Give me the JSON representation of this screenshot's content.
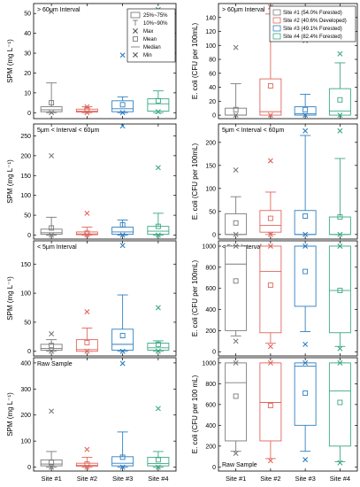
{
  "chart_data": {
    "type": "box",
    "categories": [
      "Site #1",
      "Site #2",
      "Site #3",
      "Site #4"
    ],
    "series_colors": [
      "#7a7a7a",
      "#e0665c",
      "#2f7fc1",
      "#3aa882"
    ],
    "legend_series": [
      {
        "label": "Site #1 (54.0% Forested)",
        "color": "#7a7a7a"
      },
      {
        "label": "Site #2 (40.6% Developed)",
        "color": "#e0665c"
      },
      {
        "label": "Site #3 (49.1% Forested)",
        "color": "#2f7fc1"
      },
      {
        "label": "Site #4 (82.4% Forested)",
        "color": "#3aa882"
      }
    ],
    "legend_stats": {
      "box": "25%~75%",
      "whisker": "10%~90%",
      "max": "Max",
      "mean": "Mean",
      "median": "Median",
      "min": "Min"
    },
    "panels": [
      {
        "col": 0,
        "row": 0,
        "ylabel": "SPM (mg L⁻¹)",
        "interval": "> 60μm Interval",
        "ylim": [
          -3,
          55
        ],
        "yticks": [
          0,
          10,
          20,
          30,
          40,
          50
        ],
        "show_stats_legend": true,
        "boxes": [
          {
            "q1": 0.5,
            "q3": 3,
            "median": 1.5,
            "mean": 5,
            "whislo": 0,
            "whishi": 15,
            "min": 0,
            "max": 51
          },
          {
            "q1": 0.3,
            "q3": 1.8,
            "median": 0.8,
            "mean": 1.5,
            "whislo": 0,
            "whishi": 3,
            "min": 0,
            "max": 3
          },
          {
            "q1": 0.5,
            "q3": 6,
            "median": 2,
            "mean": 4,
            "whislo": 0,
            "whishi": 8,
            "min": 0,
            "max": 29
          },
          {
            "q1": 0.8,
            "q3": 7,
            "median": 4.5,
            "mean": 6,
            "whislo": 0,
            "whishi": 11,
            "min": 0.5,
            "max": 52
          }
        ]
      },
      {
        "col": 1,
        "row": 0,
        "ylabel": "E. coli (CFU per 100mL)",
        "interval": "> 60μm Interval",
        "ylim": [
          -5,
          160
        ],
        "yticks": [
          0,
          20,
          40,
          60,
          80,
          100,
          120,
          140
        ],
        "show_series_legend": true,
        "boxes": [
          {
            "q1": 0,
            "q3": 10,
            "median": 0,
            "mean": 8,
            "whislo": 0,
            "whishi": 45,
            "min": 0,
            "max": 97
          },
          {
            "q1": 0,
            "q3": 52,
            "median": 5,
            "mean": 42,
            "whislo": 0,
            "whishi": 145,
            "min": 0,
            "max": 155
          },
          {
            "q1": 0,
            "q3": 12,
            "median": 2,
            "mean": 8,
            "whislo": 0,
            "whishi": 30,
            "min": 0,
            "max": 107
          },
          {
            "q1": 0,
            "q3": 38,
            "median": 6,
            "mean": 22,
            "whislo": 0,
            "whishi": 75,
            "min": 0,
            "max": 88
          }
        ]
      },
      {
        "col": 0,
        "row": 1,
        "ylabel": "SPM (mg L⁻¹)",
        "interval": "5μm < Interval < 60μm",
        "ylim": [
          -10,
          280
        ],
        "yticks": [
          0,
          50,
          100,
          150,
          200,
          250
        ],
        "boxes": [
          {
            "q1": 2,
            "q3": 15,
            "median": 6,
            "mean": 18,
            "whislo": 0,
            "whishi": 45,
            "min": 0,
            "max": 200
          },
          {
            "q1": 1,
            "q3": 8,
            "median": 3,
            "mean": 5,
            "whislo": 0,
            "whishi": 20,
            "min": 0,
            "max": 55
          },
          {
            "q1": 2,
            "q3": 20,
            "median": 8,
            "mean": 26,
            "whislo": 0,
            "whishi": 38,
            "min": 0,
            "max": 275
          },
          {
            "q1": 2,
            "q3": 22,
            "median": 10,
            "mean": 22,
            "whislo": 0,
            "whishi": 55,
            "min": 0,
            "max": 170
          }
        ]
      },
      {
        "col": 1,
        "row": 1,
        "ylabel": "E. coli (CFU per 100mL)",
        "interval": "5μm < Interval < 60μm",
        "ylim": [
          -10,
          240
        ],
        "yticks": [
          0,
          50,
          100,
          150,
          200
        ],
        "boxes": [
          {
            "q1": 0,
            "q3": 45,
            "median": 0,
            "mean": 25,
            "whislo": 0,
            "whishi": 82,
            "min": 0,
            "max": 140
          },
          {
            "q1": 5,
            "q3": 52,
            "median": 20,
            "mean": 35,
            "whislo": 0,
            "whishi": 92,
            "min": 0,
            "max": 160
          },
          {
            "q1": 0,
            "q3": 52,
            "median": 0,
            "mean": 40,
            "whislo": 0,
            "whishi": 215,
            "min": 0,
            "max": 225
          },
          {
            "q1": 0,
            "q3": 38,
            "median": 0,
            "mean": 38,
            "whislo": 0,
            "whishi": 165,
            "min": 0,
            "max": 225
          }
        ]
      },
      {
        "col": 0,
        "row": 2,
        "ylabel": "SPM (mg L⁻¹)",
        "interval": "< 5μm Interval",
        "ylim": [
          -8,
          190
        ],
        "yticks": [
          0,
          50,
          100,
          150
        ],
        "boxes": [
          {
            "q1": 2,
            "q3": 12,
            "median": 5,
            "mean": 10,
            "whislo": 0,
            "whishi": 20,
            "min": 0,
            "max": 30
          },
          {
            "q1": 0,
            "q3": 20,
            "median": 3,
            "mean": 15,
            "whislo": 0,
            "whishi": 40,
            "min": 0,
            "max": 68
          },
          {
            "q1": 2,
            "q3": 38,
            "median": 12,
            "mean": 27,
            "whislo": 0,
            "whishi": 97,
            "min": 0,
            "max": 182
          },
          {
            "q1": 2,
            "q3": 14,
            "median": 6,
            "mean": 12,
            "whislo": 0,
            "whishi": 18,
            "min": 0,
            "max": 75
          }
        ]
      },
      {
        "col": 1,
        "row": 2,
        "ylabel": "E. coli (CFU per 100mL)",
        "interval": "< 5μm Interval",
        "ylim": [
          -40,
          1050
        ],
        "yticks": [
          0,
          200,
          400,
          600,
          800,
          1000
        ],
        "boxes": [
          {
            "q1": 200,
            "q3": 1000,
            "median": 830,
            "mean": 670,
            "whislo": 150,
            "whishi": 1000,
            "min": 100,
            "max": 1000
          },
          {
            "q1": 180,
            "q3": 1000,
            "median": 760,
            "mean": 630,
            "whislo": 80,
            "whishi": 1000,
            "min": 50,
            "max": 1000
          },
          {
            "q1": 430,
            "q3": 1000,
            "median": 1000,
            "mean": 760,
            "whislo": 190,
            "whishi": 1000,
            "min": 70,
            "max": 1000
          },
          {
            "q1": 180,
            "q3": 1000,
            "median": 580,
            "mean": 580,
            "whislo": 50,
            "whishi": 1000,
            "min": 30,
            "max": 1000
          }
        ]
      },
      {
        "col": 0,
        "row": 3,
        "ylabel": "SPM (mg L⁻¹)",
        "interval": "Raw Sample",
        "interval_pos": "top",
        "ylim": [
          -15,
          420
        ],
        "yticks": [
          0,
          100,
          200,
          300,
          400
        ],
        "boxes": [
          {
            "q1": 5,
            "q3": 28,
            "median": 12,
            "mean": 18,
            "whislo": 0,
            "whishi": 60,
            "min": 0,
            "max": 215
          },
          {
            "q1": 3,
            "q3": 15,
            "median": 7,
            "mean": 12,
            "whislo": 0,
            "whishi": 38,
            "min": 0,
            "max": 68
          },
          {
            "q1": 5,
            "q3": 40,
            "median": 15,
            "mean": 38,
            "whislo": 0,
            "whishi": 135,
            "min": 0,
            "max": 398
          },
          {
            "q1": 5,
            "q3": 38,
            "median": 14,
            "mean": 28,
            "whislo": 0,
            "whishi": 60,
            "min": 0,
            "max": 225
          }
        ]
      },
      {
        "col": 1,
        "row": 3,
        "ylabel": "E. coli (CFU per 100 mL)",
        "interval": "Raw Sample",
        "interval_pos": "bottom",
        "ylim": [
          -40,
          1050
        ],
        "yticks": [
          0,
          200,
          400,
          600,
          800,
          1000
        ],
        "boxes": [
          {
            "q1": 250,
            "q3": 1000,
            "median": 810,
            "mean": 680,
            "whislo": 150,
            "whishi": 1000,
            "min": 130,
            "max": 1000
          },
          {
            "q1": 250,
            "q3": 1000,
            "median": 620,
            "mean": 590,
            "whislo": 80,
            "whishi": 1000,
            "min": 60,
            "max": 1000
          },
          {
            "q1": 400,
            "q3": 1000,
            "median": 970,
            "mean": 710,
            "whislo": 150,
            "whishi": 1000,
            "min": 70,
            "max": 1000
          },
          {
            "q1": 200,
            "q3": 1000,
            "median": 730,
            "mean": 620,
            "whislo": 50,
            "whishi": 1000,
            "min": 40,
            "max": 1000
          }
        ]
      }
    ]
  }
}
